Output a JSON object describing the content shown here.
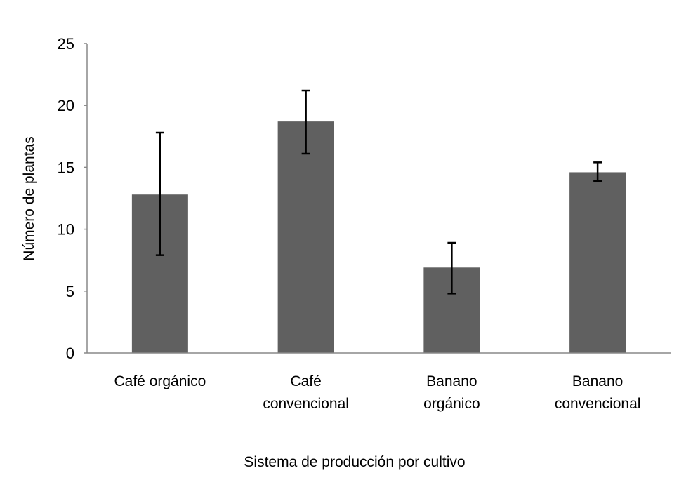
{
  "chart_data": {
    "type": "bar",
    "title": "",
    "xlabel": "Sistema de producción por cultivo",
    "ylabel": "Número de plantas",
    "ylim": [
      0,
      25
    ],
    "yticks": [
      0,
      5,
      10,
      15,
      20,
      25
    ],
    "grid": false,
    "categories": [
      [
        "Café orgánico"
      ],
      [
        "Café",
        "convencional"
      ],
      [
        "Banano",
        "orgánico"
      ],
      [
        "Banano",
        "convencional"
      ]
    ],
    "values": [
      12.8,
      18.7,
      6.9,
      14.6
    ],
    "error_low": [
      7.9,
      16.1,
      4.8,
      13.9
    ],
    "error_high": [
      17.8,
      21.2,
      8.9,
      15.4
    ],
    "bar_color": "#606060"
  }
}
